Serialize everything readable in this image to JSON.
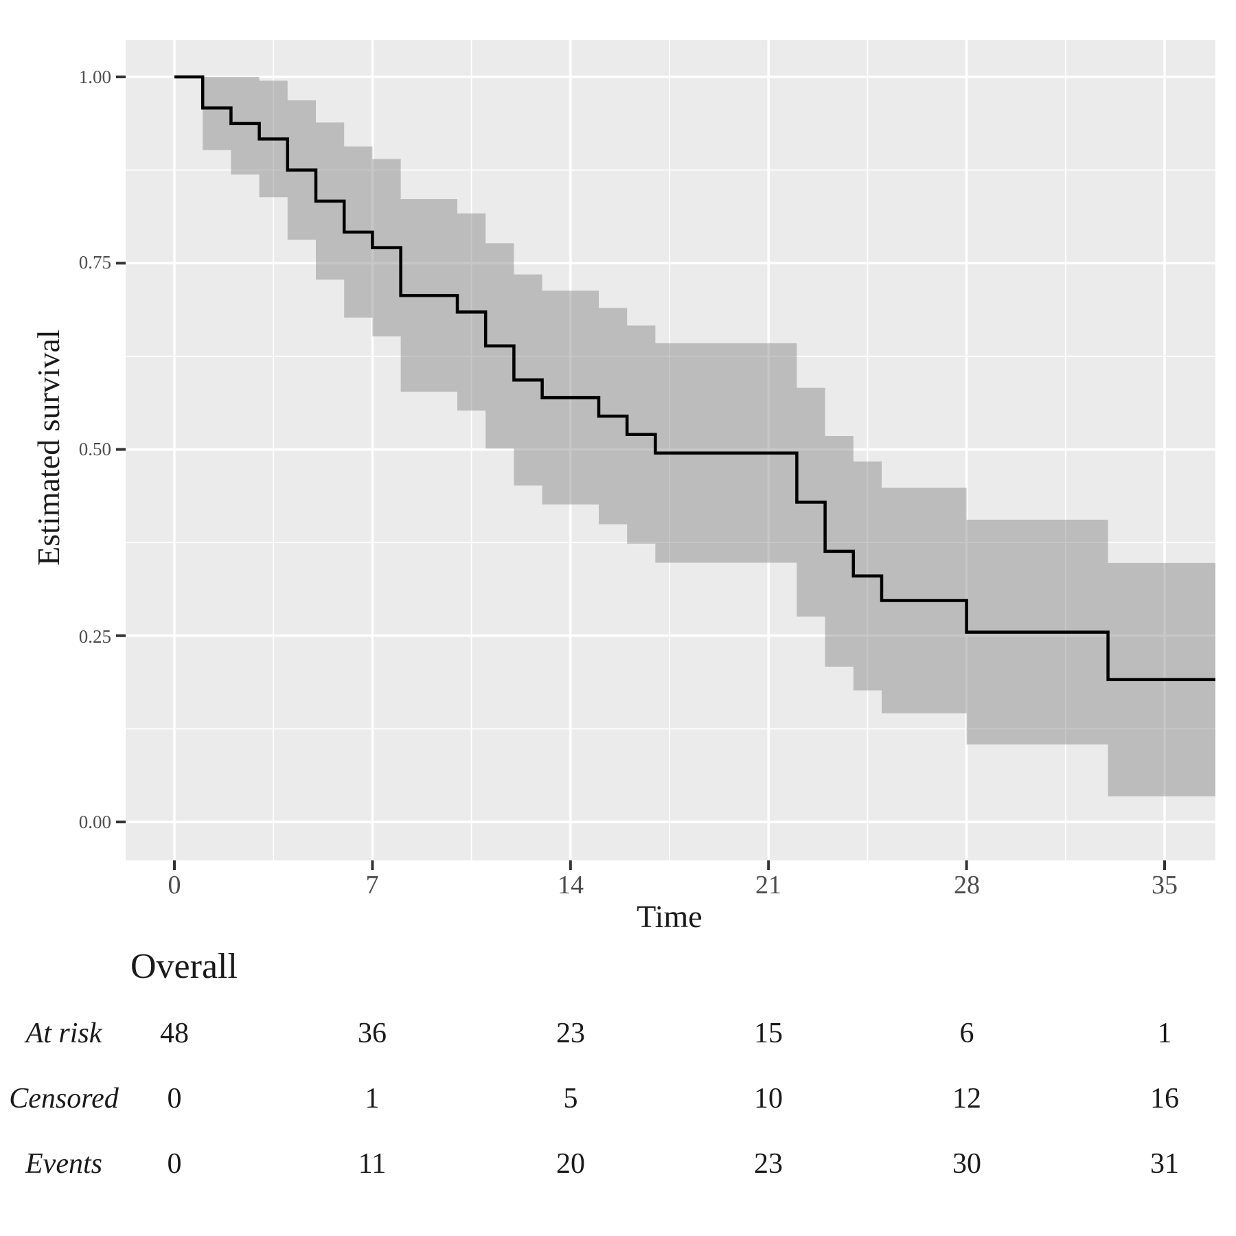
{
  "axes": {
    "y": {
      "title": "Estimated survival",
      "ticks": [
        {
          "label": "1.00",
          "value": 1.0
        },
        {
          "label": "0.75",
          "value": 0.75
        },
        {
          "label": "0.50",
          "value": 0.5
        },
        {
          "label": "0.25",
          "value": 0.25
        },
        {
          "label": "0.00",
          "value": 0.0
        }
      ]
    },
    "x": {
      "title": "Time",
      "ticks": [
        {
          "label": "0",
          "value": 0
        },
        {
          "label": "7",
          "value": 7
        },
        {
          "label": "14",
          "value": 14
        },
        {
          "label": "21",
          "value": 21
        },
        {
          "label": "28",
          "value": 28
        },
        {
          "label": "35",
          "value": 35
        }
      ]
    }
  },
  "risk_table": {
    "header": "Overall",
    "rows": [
      {
        "label": "At risk",
        "values": [
          "48",
          "36",
          "23",
          "15",
          "6",
          "1"
        ]
      },
      {
        "label": "Censored",
        "values": [
          "0",
          "1",
          "5",
          "10",
          "12",
          "16"
        ]
      },
      {
        "label": "Events",
        "values": [
          "0",
          "11",
          "20",
          "23",
          "30",
          "31"
        ]
      }
    ]
  },
  "chart_data": {
    "type": "line",
    "subtype": "kaplan_meier_step_with_ci_ribbon",
    "title": "",
    "xlabel": "Time",
    "ylabel": "Estimated survival",
    "xlim": [
      0,
      36.8
    ],
    "ylim": [
      0,
      1
    ],
    "x_major_ticks": [
      0,
      7,
      14,
      21,
      28,
      35
    ],
    "y_major_ticks": [
      0,
      0.25,
      0.5,
      0.75,
      1.0
    ],
    "grid": "major+minor",
    "legend": "none",
    "series": [
      {
        "name": "Overall",
        "start_time": 0,
        "start_survival": 1.0,
        "event_times": [
          1,
          2,
          3,
          4,
          5,
          6,
          7,
          8,
          10,
          11,
          12,
          13,
          15,
          16,
          17,
          22,
          23,
          24,
          25,
          28,
          33
        ],
        "survival": [
          0.9583,
          0.9375,
          0.9167,
          0.875,
          0.8333,
          0.7917,
          0.7708,
          0.7066,
          0.6845,
          0.6389,
          0.5932,
          0.5695,
          0.5447,
          0.52,
          0.4952,
          0.4292,
          0.3632,
          0.3302,
          0.2972,
          0.2547,
          0.1911
        ],
        "ci_lower": [
          0.9019,
          0.869,
          0.8385,
          0.7815,
          0.7279,
          0.6768,
          0.6519,
          0.5773,
          0.5522,
          0.5011,
          0.4515,
          0.4261,
          0.3995,
          0.3735,
          0.3479,
          0.2757,
          0.2084,
          0.1765,
          0.1459,
          0.1039,
          0.0345
        ],
        "ci_upper": [
          1,
          1,
          0.9949,
          0.9685,
          0.9388,
          0.9066,
          0.8897,
          0.8359,
          0.8168,
          0.7767,
          0.7349,
          0.713,
          0.6899,
          0.6664,
          0.6425,
          0.5827,
          0.518,
          0.4838,
          0.4485,
          0.4056,
          0.3476
        ]
      }
    ]
  },
  "colors": {
    "panel": "#ebebeb",
    "grid": "#ffffff",
    "band": "rgba(128,128,128,0.44)",
    "curve": "#000000",
    "tick": "#333333",
    "tick_label": "#4d4d4d",
    "text": "#1a1a1a"
  }
}
